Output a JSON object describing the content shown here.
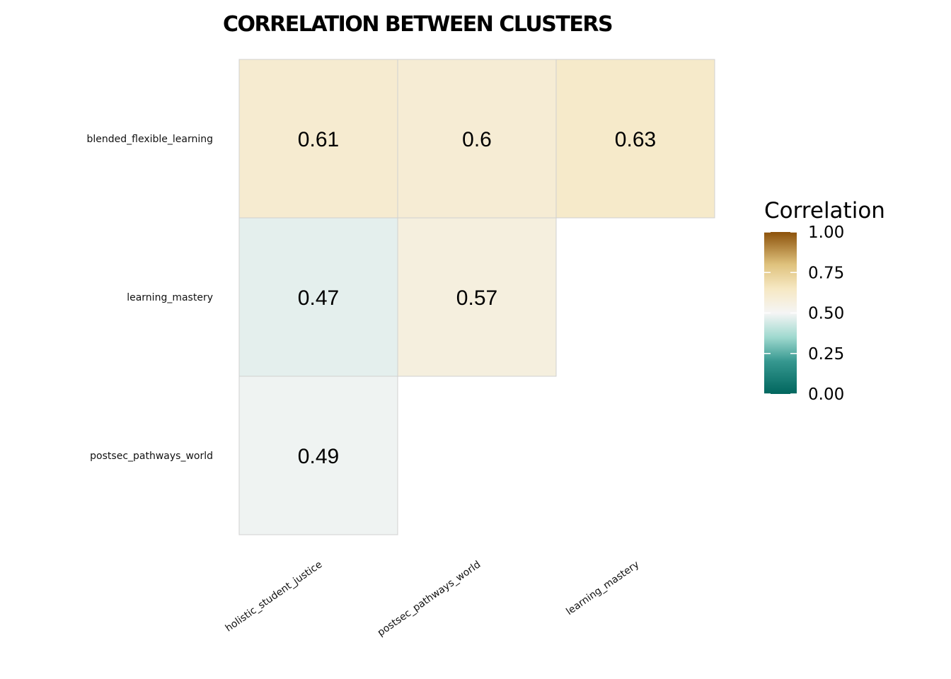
{
  "chart_data": {
    "type": "heatmap",
    "title": "CORRELATION BETWEEN CLUSTERS",
    "x_categories": [
      "holistic_student_justice",
      "postsec_pathways_world",
      "learning_mastery"
    ],
    "y_categories": [
      "blended_flexible_learning",
      "learning_mastery",
      "postsec_pathways_world"
    ],
    "cells": [
      {
        "x": "holistic_student_justice",
        "y": "blended_flexible_learning",
        "value": 0.61,
        "label": "0.61"
      },
      {
        "x": "postsec_pathways_world",
        "y": "blended_flexible_learning",
        "value": 0.6,
        "label": "0.6"
      },
      {
        "x": "learning_mastery",
        "y": "blended_flexible_learning",
        "value": 0.63,
        "label": "0.63"
      },
      {
        "x": "holistic_student_justice",
        "y": "learning_mastery",
        "value": 0.47,
        "label": "0.47"
      },
      {
        "x": "postsec_pathways_world",
        "y": "learning_mastery",
        "value": 0.57,
        "label": "0.57"
      },
      {
        "x": "holistic_student_justice",
        "y": "postsec_pathways_world",
        "value": 0.49,
        "label": "0.49"
      }
    ],
    "legend": {
      "title": "Correlation",
      "range": [
        0,
        1
      ],
      "ticks": [
        "0.00",
        "0.25",
        "0.50",
        "0.75",
        "1.00"
      ],
      "tick_values": [
        0,
        0.25,
        0.5,
        0.75,
        1
      ],
      "placement": "right"
    },
    "colors": {
      "low": "#01665e",
      "mid_low": "#5ab4ac",
      "mid_low2": "#c7eae5",
      "mid": "#f5f5f5",
      "mid_high": "#f6e8c3",
      "mid_high2": "#d8b365",
      "high": "#8c510a",
      "cell_border": "#d0d0d0"
    }
  }
}
